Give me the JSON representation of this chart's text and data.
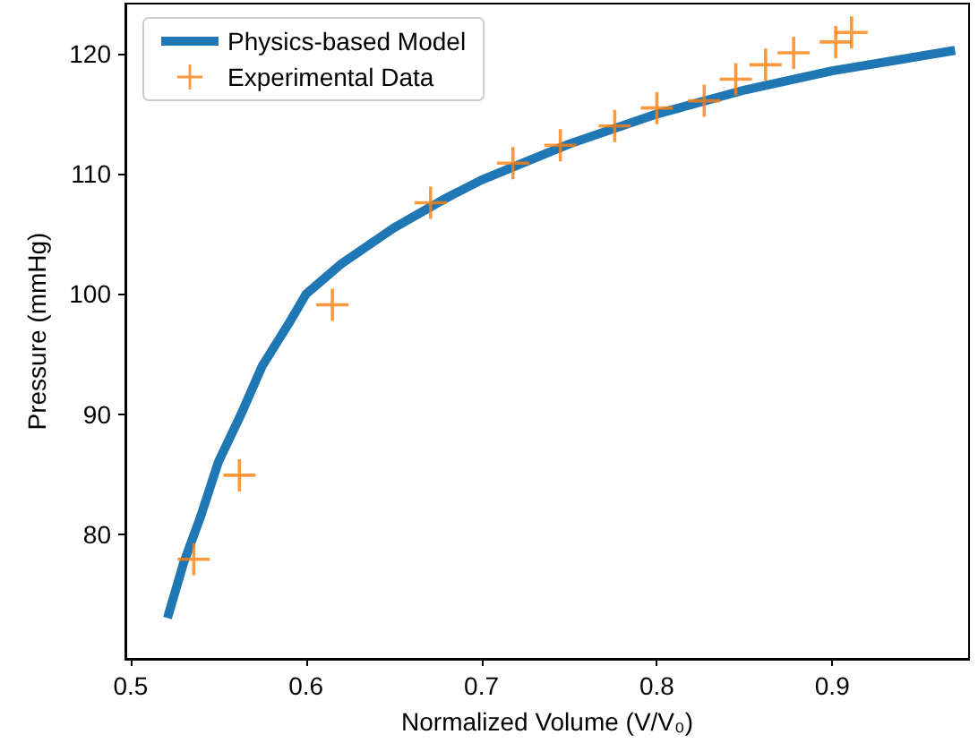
{
  "chart_data": {
    "type": "line",
    "xlabel": "Normalized Volume (V/V₀)",
    "ylabel": "Pressure (mmHg)",
    "xlim": [
      0.497,
      0.978
    ],
    "xticks": [
      0.5,
      0.6,
      0.7,
      0.8,
      0.9
    ],
    "ylim": [
      69.6,
      124.2
    ],
    "yticks": [
      80,
      90,
      100,
      110,
      120
    ],
    "grid": false,
    "legend": "top left",
    "series": [
      {
        "name": "Physics-based Model",
        "color": "#1f77b4",
        "marker": "none",
        "line_style": "solid",
        "x": [
          0.521,
          0.53,
          0.54,
          0.55,
          0.563,
          0.575,
          0.59,
          0.6,
          0.62,
          0.65,
          0.68,
          0.7,
          0.75,
          0.8,
          0.85,
          0.9,
          0.97
        ],
        "values": [
          73,
          77.5,
          81.5,
          86,
          90,
          94,
          97.5,
          100,
          102.5,
          105.5,
          108,
          109.5,
          112.5,
          115,
          117,
          118.6,
          120.3
        ]
      },
      {
        "name": "Experimental Data",
        "type": "scatter",
        "color": "#ff7f0e",
        "marker": "cross",
        "x": [
          0.536,
          0.562,
          0.615,
          0.671,
          0.718,
          0.745,
          0.776,
          0.8,
          0.827,
          0.845,
          0.862,
          0.878,
          0.902,
          0.911
        ],
        "values": [
          77.9,
          84.9,
          99.1,
          107.6,
          110.9,
          112.4,
          114.0,
          115.5,
          116.1,
          117.9,
          119.1,
          120.1,
          121.0,
          121.8
        ]
      }
    ]
  }
}
